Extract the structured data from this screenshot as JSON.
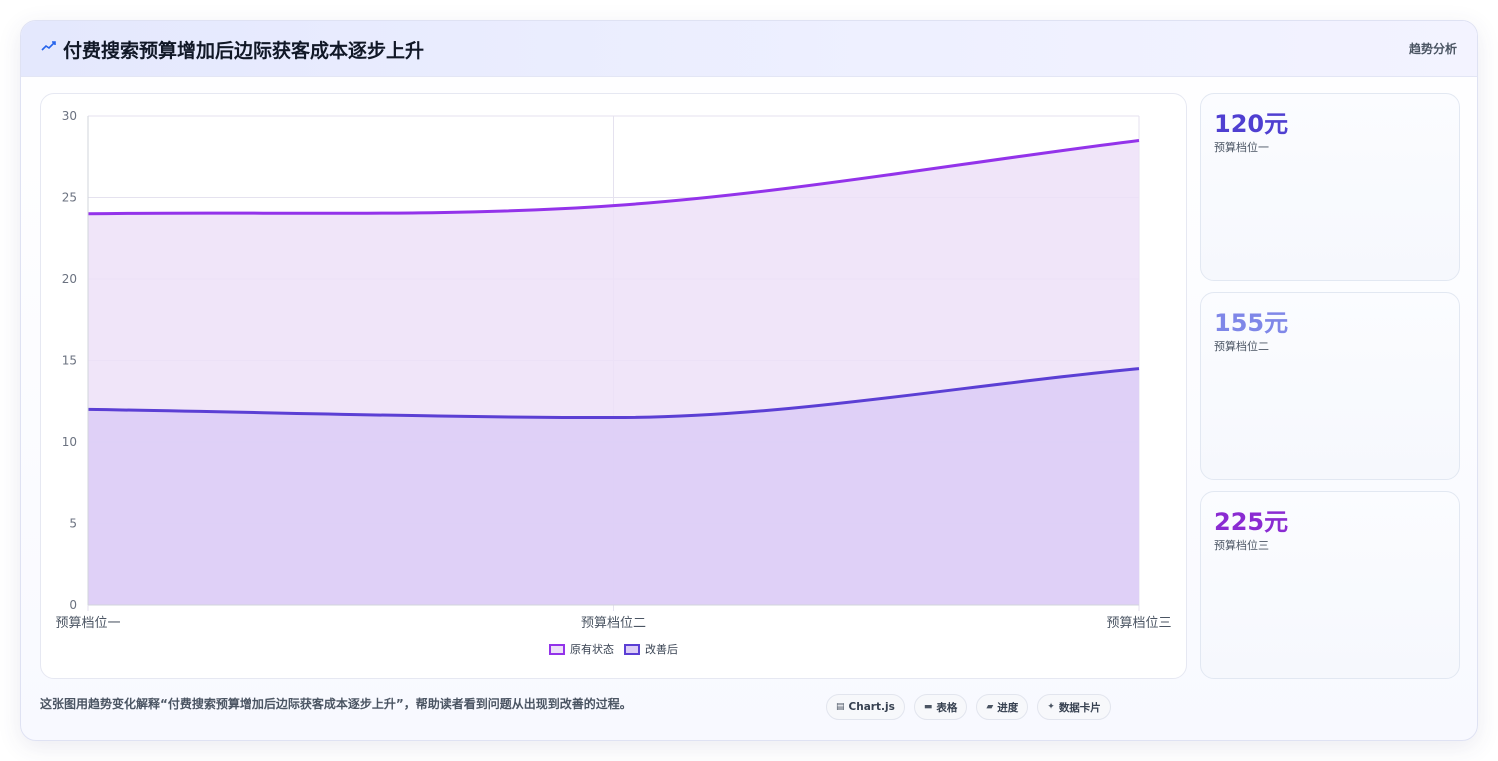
{
  "header": {
    "title": "付费搜索预算增加后边际获客成本逐步上升",
    "tag": "趋势分析"
  },
  "chart_data": {
    "type": "area",
    "categories": [
      "预算档位一",
      "预算档位二",
      "预算档位三"
    ],
    "series": [
      {
        "name": "原有状态",
        "values": [
          24,
          24.5,
          28.5
        ],
        "color": "#9333ea",
        "fill": "#ede0f8"
      },
      {
        "name": "改善后",
        "values": [
          12,
          11.5,
          14.5
        ],
        "color": "#5b3fd4",
        "fill": "#dccdf7"
      }
    ],
    "ylim": [
      0,
      30
    ],
    "yticks": [
      "0",
      "5",
      "10",
      "15",
      "20",
      "25",
      "30"
    ],
    "grid": true,
    "legend": "bottom-center"
  },
  "stats": [
    {
      "value": "120元",
      "label": "预算档位一",
      "color": "#4f3fd1"
    },
    {
      "value": "155元",
      "label": "预算档位二",
      "color": "#7f87e8"
    },
    {
      "value": "225元",
      "label": "预算档位三",
      "color": "#8a2bd2"
    }
  ],
  "footer": {
    "description": "这张图用趋势变化解释“付费搜索预算增加后边际获客成本逐步上升”，帮助读者看到问题从出现到改善的过程。",
    "chips": [
      {
        "icon": "chart-icon",
        "glyph": "▤",
        "label": "Chart.js"
      },
      {
        "icon": "table-icon",
        "glyph": "▬",
        "label": "表格"
      },
      {
        "icon": "progress-icon",
        "glyph": "▰",
        "label": "进度"
      },
      {
        "icon": "card-icon",
        "glyph": "✦",
        "label": "数据卡片"
      }
    ]
  }
}
